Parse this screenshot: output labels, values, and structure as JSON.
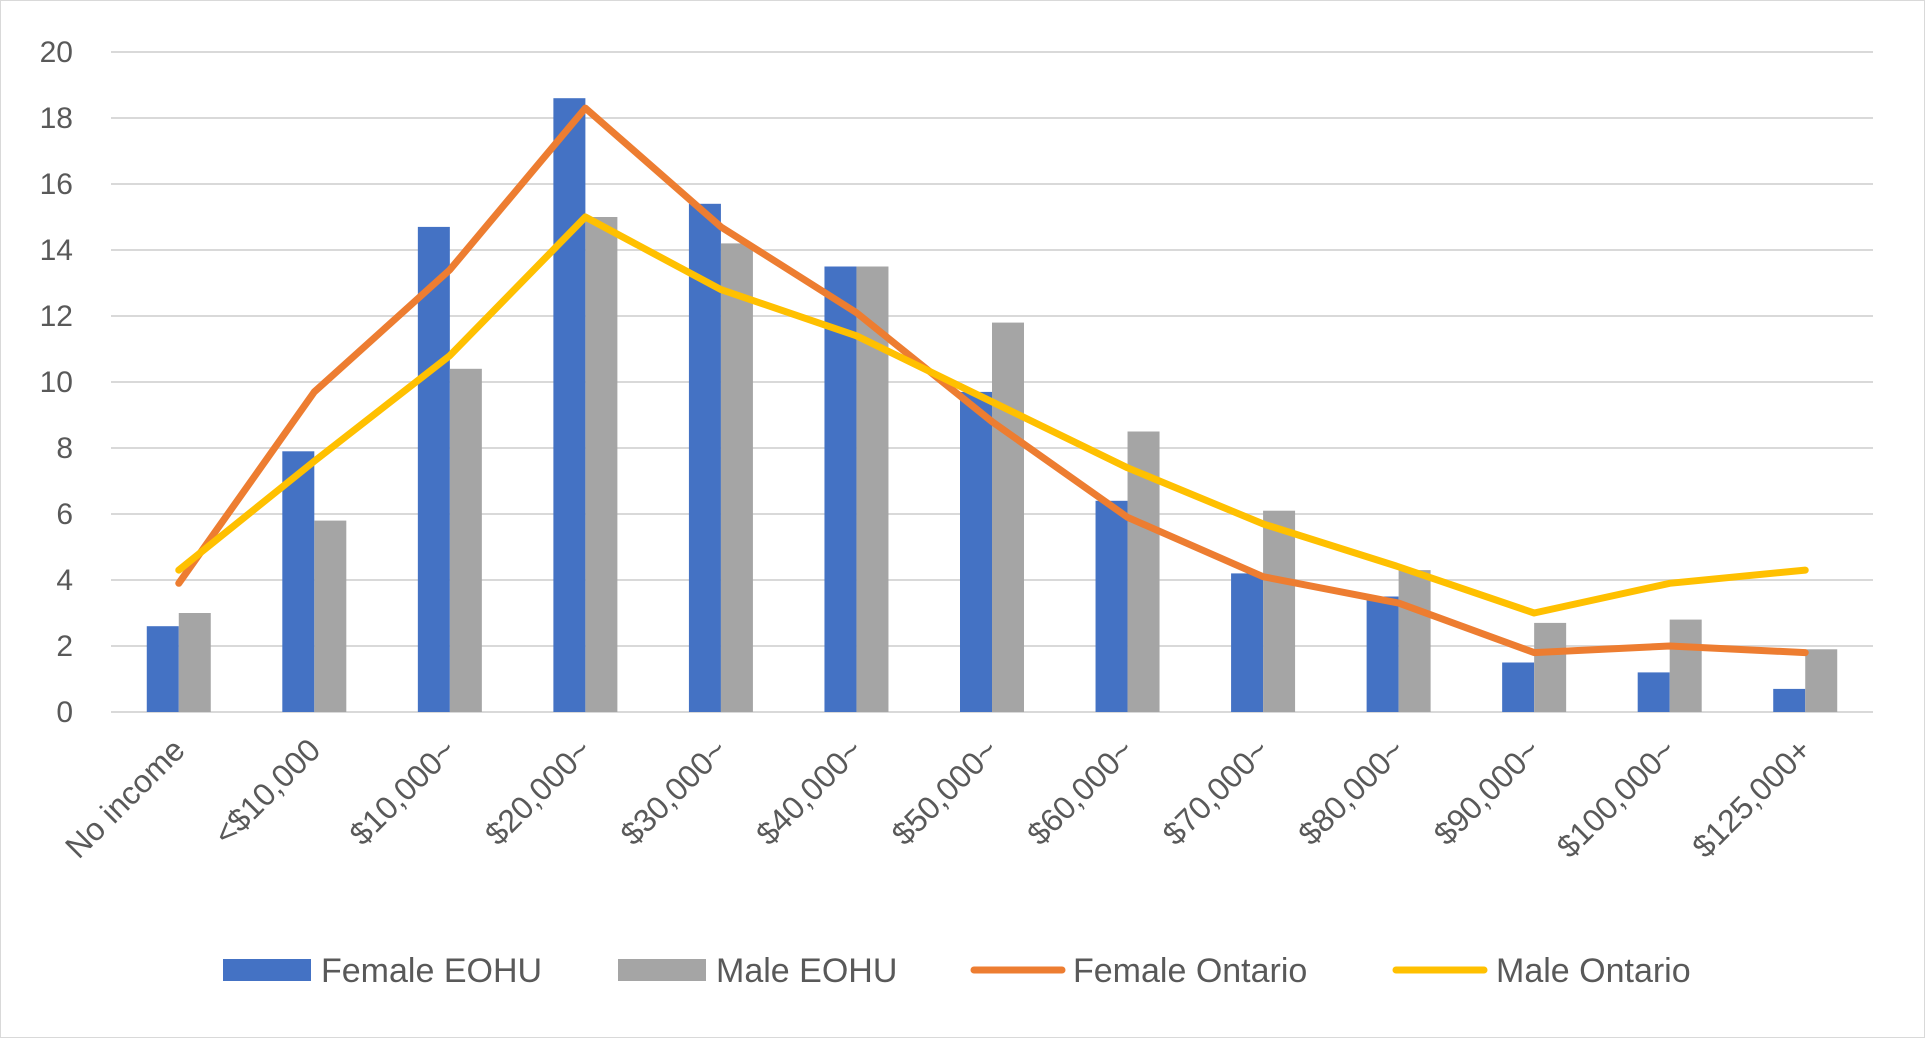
{
  "chart_data": {
    "type": "bar",
    "categories": [
      "No income",
      "<$10,000",
      "$10,000~",
      "$20,000~",
      "$30,000~",
      "$40,000~",
      "$50,000~",
      "$60,000~",
      "$70,000~",
      "$80,000~",
      "$90,000~",
      "$100,000~",
      "$125,000+"
    ],
    "series": [
      {
        "name": "Female EOHU",
        "kind": "bar",
        "color": "#4472c4",
        "values": [
          2.6,
          7.9,
          14.7,
          18.6,
          15.4,
          13.5,
          9.7,
          6.4,
          4.2,
          3.5,
          1.5,
          1.2,
          0.7
        ]
      },
      {
        "name": "Male EOHU",
        "kind": "bar",
        "color": "#a5a5a5",
        "values": [
          3.0,
          5.8,
          10.4,
          15.0,
          14.2,
          13.5,
          11.8,
          8.5,
          6.1,
          4.3,
          2.7,
          2.8,
          1.9
        ]
      },
      {
        "name": "Female Ontario",
        "kind": "line",
        "color": "#ed7d31",
        "values": [
          3.9,
          9.7,
          13.4,
          18.3,
          14.7,
          12.1,
          8.8,
          5.9,
          4.1,
          3.3,
          1.8,
          2.0,
          1.8
        ]
      },
      {
        "name": "Male Ontario",
        "kind": "line",
        "color": "#ffc000",
        "values": [
          4.3,
          7.6,
          10.8,
          15.0,
          12.8,
          11.4,
          9.4,
          7.4,
          5.7,
          4.4,
          3.0,
          3.9,
          4.3
        ]
      }
    ],
    "y_ticks": [
      "0",
      "2",
      "4",
      "6",
      "8",
      "10",
      "12",
      "14",
      "16",
      "18",
      "20"
    ],
    "ylim": [
      0,
      20
    ],
    "grid": true,
    "gridline_color": "#d9d9d9",
    "legend_position": "bottom"
  }
}
